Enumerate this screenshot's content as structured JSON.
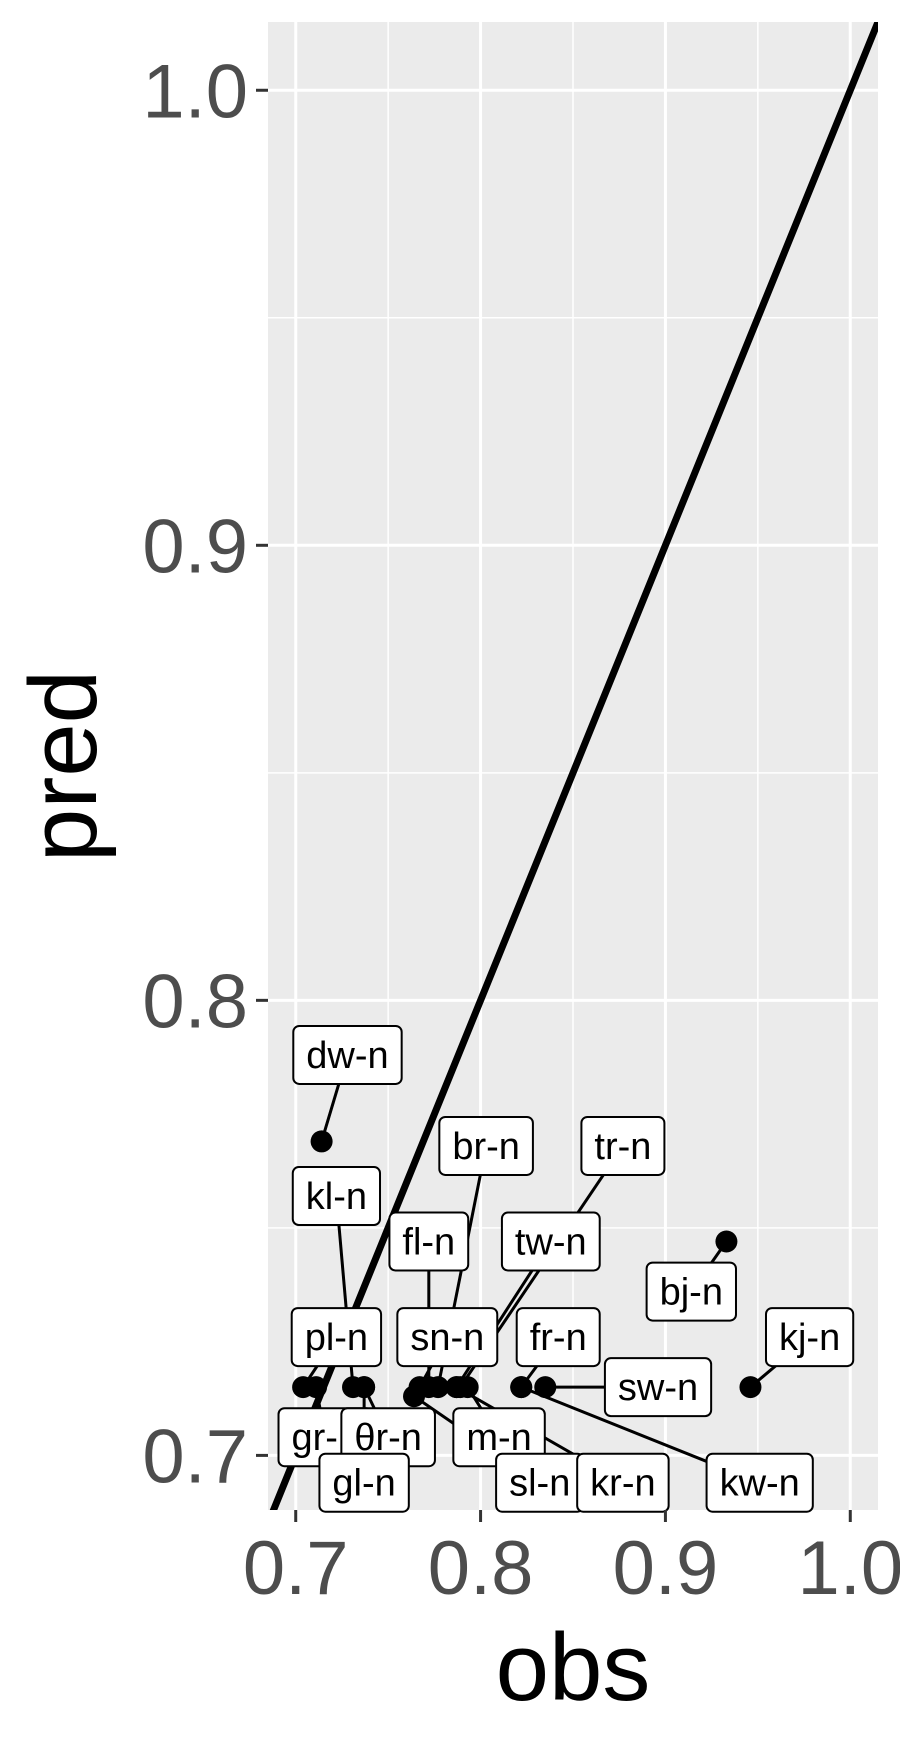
{
  "chart_data": {
    "type": "scatter",
    "xlabel": "obs",
    "ylabel": "pred",
    "xlim": [
      0.685,
      1.015
    ],
    "ylim": [
      0.688,
      1.015
    ],
    "x_ticks": [
      {
        "value": 0.7,
        "label": "0.7"
      },
      {
        "value": 0.8,
        "label": "0.8"
      },
      {
        "value": 0.9,
        "label": "0.9"
      },
      {
        "value": 1.0,
        "label": "1.0"
      }
    ],
    "y_ticks": [
      {
        "value": 0.7,
        "label": "0.7"
      },
      {
        "value": 0.8,
        "label": "0.8"
      },
      {
        "value": 0.9,
        "label": "0.9"
      },
      {
        "value": 1.0,
        "label": "1.0"
      }
    ],
    "minor_gridlines": {
      "x": [
        0.75,
        0.85,
        0.95
      ],
      "y": [
        0.75,
        0.85,
        0.95
      ]
    },
    "grid": true,
    "reference_line": {
      "slope": 1,
      "intercept": 0
    },
    "background": "#ebebeb",
    "grid_color": "#ffffff",
    "point_color": "#000000",
    "points": [
      {
        "label": "dw-n",
        "x": 0.714,
        "y": 0.769,
        "label_x": 0.728,
        "label_y": 0.788
      },
      {
        "label": "br-n",
        "x": 0.777,
        "y": 0.715,
        "label_x": 0.803,
        "label_y": 0.768
      },
      {
        "label": "tr-n",
        "x": 0.789,
        "y": 0.715,
        "label_x": 0.877,
        "label_y": 0.768
      },
      {
        "label": "kl-n",
        "x": 0.731,
        "y": 0.715,
        "label_x": 0.722,
        "label_y": 0.757
      },
      {
        "label": "fl-n",
        "x": 0.772,
        "y": 0.715,
        "label_x": 0.772,
        "label_y": 0.747
      },
      {
        "label": "tw-n",
        "x": 0.787,
        "y": 0.715,
        "label_x": 0.838,
        "label_y": 0.747
      },
      {
        "label": "bj-n",
        "x": 0.933,
        "y": 0.747,
        "label_x": 0.914,
        "label_y": 0.736
      },
      {
        "label": "pl-n",
        "x": 0.704,
        "y": 0.715,
        "label_x": 0.722,
        "label_y": 0.726
      },
      {
        "label": "sn-n",
        "x": 0.767,
        "y": 0.715,
        "label_x": 0.782,
        "label_y": 0.726
      },
      {
        "label": "fr-n",
        "x": 0.822,
        "y": 0.715,
        "label_x": 0.842,
        "label_y": 0.726
      },
      {
        "label": "kj-n",
        "x": 0.946,
        "y": 0.715,
        "label_x": 0.978,
        "label_y": 0.726
      },
      {
        "label": "sw-n",
        "x": 0.835,
        "y": 0.715,
        "label_x": 0.896,
        "label_y": 0.715
      },
      {
        "label": "gr-n",
        "x": 0.711,
        "y": 0.715,
        "label_x": 0.716,
        "label_y": 0.704
      },
      {
        "label": "θr-n",
        "x": 0.737,
        "y": 0.715,
        "label_x": 0.75,
        "label_y": 0.704
      },
      {
        "label": "m-n",
        "x": 0.793,
        "y": 0.715,
        "label_x": 0.81,
        "label_y": 0.704
      },
      {
        "label": "gl-n",
        "x": 0.737,
        "y": 0.715,
        "label_x": 0.737,
        "label_y": 0.694
      },
      {
        "label": "sl-n",
        "x": 0.764,
        "y": 0.713,
        "label_x": 0.832,
        "label_y": 0.694
      },
      {
        "label": "kr-n",
        "x": 0.787,
        "y": 0.715,
        "label_x": 0.877,
        "label_y": 0.694
      },
      {
        "label": "kw-n",
        "x": 0.822,
        "y": 0.715,
        "label_x": 0.951,
        "label_y": 0.694
      }
    ]
  }
}
